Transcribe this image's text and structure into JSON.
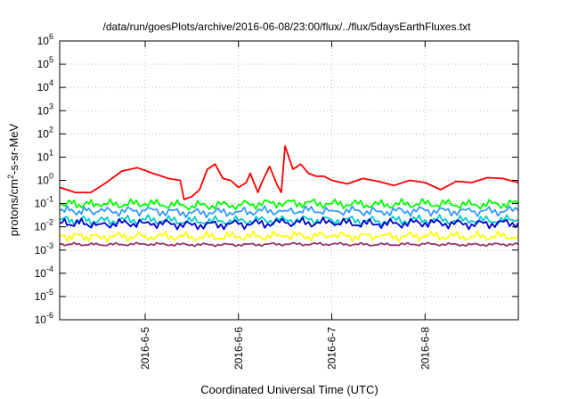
{
  "chart_data": {
    "type": "line",
    "title": "/data/run/goesPlots/archive/2016-06-08/23:00/flux/../flux/5daysEarthFluxes.txt",
    "xlabel": "Coordinated Universal Time (UTC)",
    "ylabel": {
      "base": "protons/cm",
      "sup": "2",
      "tail": "-s-sr-MeV"
    },
    "yscale": "log",
    "ylim": [
      1e-06,
      1000000.0
    ],
    "yticks": [
      {
        "base": "10",
        "exp": "6",
        "value": 1000000.0
      },
      {
        "base": "10",
        "exp": "5",
        "value": 100000.0
      },
      {
        "base": "10",
        "exp": "4",
        "value": 10000.0
      },
      {
        "base": "10",
        "exp": "3",
        "value": 1000.0
      },
      {
        "base": "10",
        "exp": "2",
        "value": 100.0
      },
      {
        "base": "10",
        "exp": "1",
        "value": 10.0
      },
      {
        "base": "10",
        "exp": "0",
        "value": 1.0
      },
      {
        "base": "10",
        "exp": "-1",
        "value": 0.1
      },
      {
        "base": "10",
        "exp": "-2",
        "value": 0.01
      },
      {
        "base": "10",
        "exp": "-3",
        "value": 0.001
      },
      {
        "base": "10",
        "exp": "-4",
        "value": 0.0001
      },
      {
        "base": "10",
        "exp": "-5",
        "value": 1e-05
      },
      {
        "base": "10",
        "exp": "-6",
        "value": 1e-06
      }
    ],
    "xlim": [
      "2016-06-04 02:00",
      "2016-06-09 00:00"
    ],
    "xticks": [
      {
        "label": "2016-6-5",
        "value": "2016-06-05 00:00"
      },
      {
        "label": "2016-6-6",
        "value": "2016-06-06 00:00"
      },
      {
        "label": "2016-6-7",
        "value": "2016-06-07 00:00"
      },
      {
        "label": "2016-6-8",
        "value": "2016-06-08 00:00"
      }
    ],
    "grid": true,
    "series": [
      {
        "color": "#ff0000",
        "x": [
          "2016-06-04 02:00",
          "2016-06-04 06:00",
          "2016-06-04 10:00",
          "2016-06-04 14:00",
          "2016-06-04 18:00",
          "2016-06-04 22:00",
          "2016-06-05 02:00",
          "2016-06-05 06:00",
          "2016-06-05 09:00",
          "2016-06-05 10:00",
          "2016-06-05 12:00",
          "2016-06-05 14:00",
          "2016-06-05 16:00",
          "2016-06-05 18:00",
          "2016-06-05 20:00",
          "2016-06-05 22:00",
          "2016-06-06 00:00",
          "2016-06-06 02:00",
          "2016-06-06 03:00",
          "2016-06-06 05:00",
          "2016-06-06 06:00",
          "2016-06-06 08:00",
          "2016-06-06 10:00",
          "2016-06-06 11:00",
          "2016-06-06 12:00",
          "2016-06-06 14:00",
          "2016-06-06 16:00",
          "2016-06-06 18:00",
          "2016-06-06 20:00",
          "2016-06-06 22:00",
          "2016-06-07 00:00",
          "2016-06-07 04:00",
          "2016-06-07 08:00",
          "2016-06-07 12:00",
          "2016-06-07 16:00",
          "2016-06-07 20:00",
          "2016-06-08 00:00",
          "2016-06-08 04:00",
          "2016-06-08 08:00",
          "2016-06-08 12:00",
          "2016-06-08 16:00",
          "2016-06-08 20:00",
          "2016-06-08 24:00"
        ],
        "y": [
          0.5,
          0.3,
          0.3,
          0.8,
          2.5,
          3.5,
          2,
          1.2,
          1,
          0.15,
          0.2,
          0.4,
          3,
          5,
          1.2,
          1,
          0.5,
          0.8,
          2,
          0.3,
          0.8,
          4,
          0.6,
          0.3,
          30,
          3,
          5,
          2,
          1.5,
          1.5,
          1,
          0.7,
          1.2,
          0.9,
          0.6,
          1,
          0.8,
          0.4,
          0.9,
          0.8,
          1.3,
          1.2,
          0.8
        ]
      },
      {
        "color": "#00ff00",
        "x": [
          "2016-06-04 02:00",
          "2016-06-04 12:00",
          "2016-06-05 00:00",
          "2016-06-05 12:00",
          "2016-06-06 00:00",
          "2016-06-06 12:00",
          "2016-06-07 00:00",
          "2016-06-07 12:00",
          "2016-06-08 00:00",
          "2016-06-08 12:00",
          "2016-06-08 24:00"
        ],
        "y": [
          0.1,
          0.09,
          0.1,
          0.08,
          0.09,
          0.11,
          0.1,
          0.09,
          0.1,
          0.09,
          0.1
        ]
      },
      {
        "color": "#3399ff",
        "x": [
          "2016-06-04 02:00",
          "2016-06-04 12:00",
          "2016-06-05 00:00",
          "2016-06-05 12:00",
          "2016-06-06 00:00",
          "2016-06-06 12:00",
          "2016-06-07 00:00",
          "2016-06-07 12:00",
          "2016-06-08 00:00",
          "2016-06-08 12:00",
          "2016-06-08 24:00"
        ],
        "y": [
          0.05,
          0.045,
          0.05,
          0.04,
          0.045,
          0.05,
          0.05,
          0.045,
          0.05,
          0.045,
          0.05
        ]
      },
      {
        "color": "#00cccc",
        "x": [
          "2016-06-04 02:00",
          "2016-06-04 12:00",
          "2016-06-05 00:00",
          "2016-06-05 12:00",
          "2016-06-06 00:00",
          "2016-06-06 12:00",
          "2016-06-07 00:00",
          "2016-06-07 12:00",
          "2016-06-08 00:00",
          "2016-06-08 12:00",
          "2016-06-08 24:00"
        ],
        "y": [
          0.02,
          0.018,
          0.02,
          0.017,
          0.018,
          0.02,
          0.02,
          0.018,
          0.02,
          0.018,
          0.02
        ]
      },
      {
        "color": "#0000cc",
        "x": [
          "2016-06-04 02:00",
          "2016-06-04 12:00",
          "2016-06-05 00:00",
          "2016-06-05 12:00",
          "2016-06-06 00:00",
          "2016-06-06 12:00",
          "2016-06-07 00:00",
          "2016-06-07 12:00",
          "2016-06-08 00:00",
          "2016-06-08 12:00",
          "2016-06-08 24:00"
        ],
        "y": [
          0.015,
          0.013,
          0.015,
          0.012,
          0.013,
          0.015,
          0.015,
          0.013,
          0.015,
          0.013,
          0.015
        ]
      },
      {
        "color": "#ffff00",
        "x": [
          "2016-06-04 02:00",
          "2016-06-04 12:00",
          "2016-06-05 00:00",
          "2016-06-05 12:00",
          "2016-06-06 00:00",
          "2016-06-06 12:00",
          "2016-06-07 00:00",
          "2016-06-07 12:00",
          "2016-06-08 00:00",
          "2016-06-08 12:00",
          "2016-06-08 24:00"
        ],
        "y": [
          0.004,
          0.0038,
          0.004,
          0.0037,
          0.0038,
          0.004,
          0.004,
          0.0038,
          0.004,
          0.0038,
          0.004
        ]
      },
      {
        "color": "#993366",
        "x": [
          "2016-06-04 02:00",
          "2016-06-04 12:00",
          "2016-06-05 00:00",
          "2016-06-05 12:00",
          "2016-06-06 00:00",
          "2016-06-06 12:00",
          "2016-06-07 00:00",
          "2016-06-07 12:00",
          "2016-06-08 00:00",
          "2016-06-08 12:00",
          "2016-06-08 24:00"
        ],
        "y": [
          0.0018,
          0.0017,
          0.0018,
          0.0017,
          0.0017,
          0.0018,
          0.0018,
          0.0017,
          0.0018,
          0.0017,
          0.0018
        ]
      }
    ]
  }
}
